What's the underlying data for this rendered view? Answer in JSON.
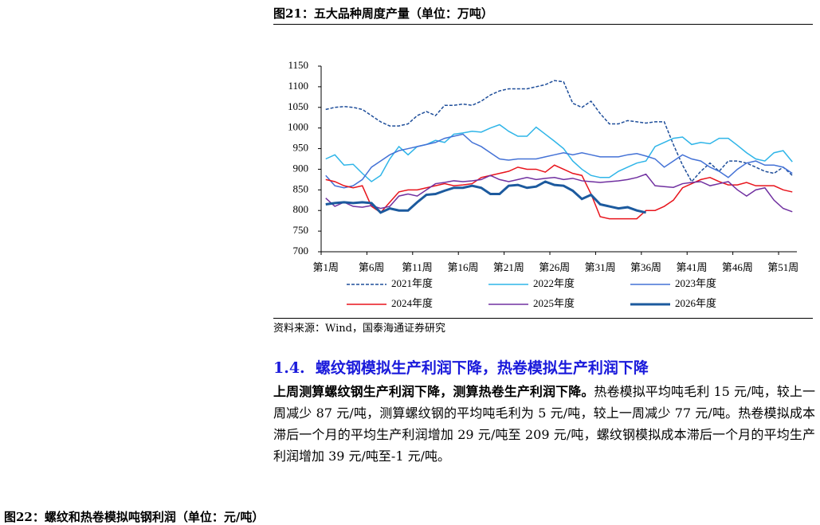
{
  "figure_title": "图21：五大品种周度产量（单位：万吨）",
  "chart_data": {
    "type": "line",
    "categories": [
      "第1周",
      null,
      null,
      null,
      null,
      "第6周",
      null,
      null,
      null,
      null,
      "第11周",
      null,
      null,
      null,
      null,
      "第16周",
      null,
      null,
      null,
      null,
      "第21周",
      null,
      null,
      null,
      null,
      "第26周",
      null,
      null,
      null,
      null,
      "第31周",
      null,
      null,
      null,
      null,
      "第36周",
      null,
      null,
      null,
      null,
      "第41周",
      null,
      null,
      null,
      null,
      "第46周",
      null,
      null,
      null,
      null,
      "第51周",
      null
    ],
    "ylim": [
      700,
      1150
    ],
    "yticks": [
      700,
      750,
      800,
      850,
      900,
      950,
      1000,
      1050,
      1100,
      1150
    ],
    "series": [
      {
        "name": "2021年度",
        "color": "#1f4e9a",
        "line_style": "dashed",
        "values": [
          1045,
          1050,
          1052,
          1050,
          1045,
          1030,
          1015,
          1005,
          1005,
          1010,
          1030,
          1040,
          1030,
          1055,
          1055,
          1058,
          1055,
          1065,
          1080,
          1090,
          1095,
          1095,
          1095,
          1100,
          1105,
          1115,
          1112,
          1060,
          1050,
          1065,
          1035,
          1010,
          1010,
          1018,
          1015,
          1012,
          1015,
          1015,
          960,
          910,
          870,
          895,
          915,
          895,
          920,
          920,
          915,
          905,
          895,
          890,
          905,
          885
        ]
      },
      {
        "name": "2022年度",
        "color": "#2fb5e8",
        "values": [
          925,
          935,
          910,
          912,
          890,
          870,
          885,
          925,
          955,
          935,
          955,
          960,
          970,
          965,
          985,
          988,
          992,
          990,
          1000,
          1008,
          992,
          980,
          980,
          1002,
          985,
          968,
          950,
          920,
          900,
          885,
          880,
          880,
          895,
          905,
          915,
          920,
          955,
          965,
          975,
          978,
          960,
          965,
          962,
          975,
          975,
          958,
          940,
          925,
          920,
          940,
          945,
          918
        ]
      },
      {
        "name": "2023年度",
        "color": "#4472d6",
        "values": [
          885,
          860,
          855,
          860,
          875,
          905,
          920,
          935,
          945,
          950,
          955,
          960,
          965,
          975,
          980,
          985,
          965,
          955,
          940,
          925,
          922,
          925,
          925,
          925,
          930,
          935,
          940,
          935,
          940,
          935,
          930,
          930,
          930,
          935,
          938,
          932,
          925,
          905,
          920,
          935,
          925,
          920,
          905,
          895,
          880,
          900,
          915,
          920,
          910,
          910,
          905,
          890
        ]
      },
      {
        "name": "2024年度",
        "color": "#e8141c",
        "values": [
          875,
          870,
          860,
          855,
          860,
          810,
          795,
          820,
          845,
          850,
          850,
          855,
          860,
          865,
          860,
          862,
          865,
          880,
          885,
          890,
          895,
          905,
          900,
          900,
          893,
          910,
          900,
          890,
          885,
          840,
          785,
          780,
          780,
          780,
          780,
          800,
          800,
          810,
          825,
          855,
          865,
          875,
          880,
          870,
          862,
          862,
          868,
          860,
          860,
          860,
          850,
          845
        ]
      },
      {
        "name": "2025年度",
        "color": "#7030a0",
        "values": [
          830,
          810,
          820,
          810,
          808,
          812,
          805,
          810,
          835,
          840,
          835,
          850,
          865,
          868,
          872,
          870,
          872,
          875,
          885,
          875,
          870,
          875,
          880,
          875,
          878,
          880,
          875,
          878,
          872,
          870,
          868,
          870,
          872,
          875,
          880,
          888,
          860,
          858,
          856,
          865,
          868,
          870,
          860,
          865,
          870,
          850,
          835,
          850,
          855,
          825,
          805,
          797
        ]
      },
      {
        "name": "2026年度",
        "color": "#1c5a9e",
        "line_width": 3,
        "values": [
          815,
          818,
          820,
          818,
          820,
          818,
          795,
          805,
          800,
          800,
          820,
          838,
          840,
          848,
          855,
          855,
          860,
          855,
          840,
          840,
          860,
          862,
          855,
          858,
          870,
          862,
          860,
          848,
          828,
          838,
          815,
          810,
          805,
          808,
          800,
          795,
          null,
          null,
          null,
          null,
          null,
          null,
          null,
          null,
          null,
          null,
          null,
          null,
          null,
          null,
          null,
          null
        ]
      }
    ]
  },
  "source": "资料来源：Wind，国泰海通证券研究",
  "section": {
    "number": "1.4.",
    "title": "螺纹钢模拟生产利润下降，热卷模拟生产利润下降"
  },
  "paragraph": {
    "lead": "上周测算螺纹钢生产利润下降，测算热卷生产利润下降。",
    "body": "热卷模拟平均吨毛利 15 元/吨，较上一周减少 87 元/吨，测算螺纹钢的平均吨毛利为 5 元/吨，较上一周减少 77 元/吨。热卷模拟成本滞后一个月的平均生产利润增加 29 元/吨至 209 元/吨，螺纹钢模拟成本滞后一个月的平均生产利润增加 39 元/吨至-1 元/吨。"
  },
  "next_figure_title": "图22：螺纹和热卷模拟吨钢利润（单位：元/吨）"
}
